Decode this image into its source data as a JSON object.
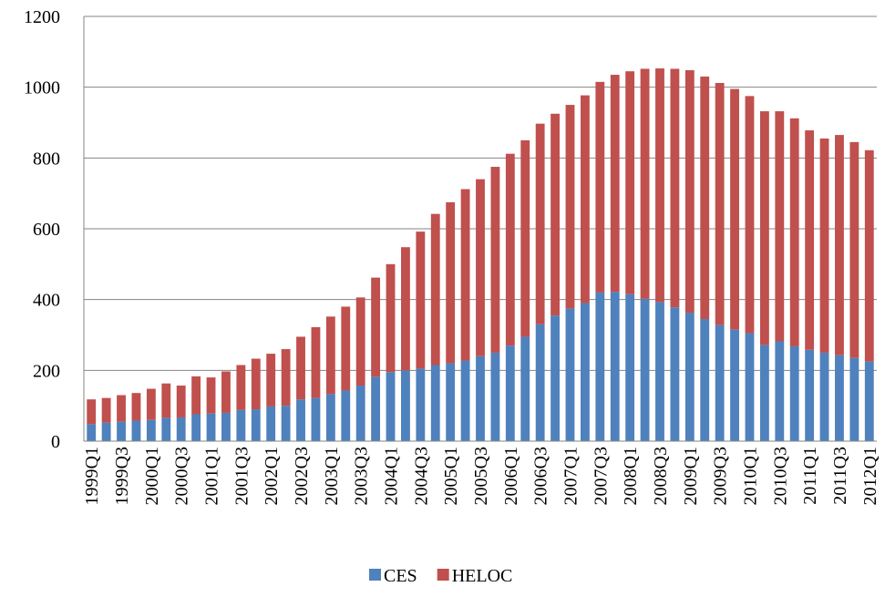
{
  "chart_data": {
    "type": "stacked_bar",
    "categories": [
      "1999Q1",
      null,
      "1999Q3",
      null,
      "2000Q1",
      null,
      "2000Q3",
      null,
      "2001Q1",
      null,
      "2001Q3",
      null,
      "2002Q1",
      null,
      "2002Q3",
      null,
      "2003Q1",
      null,
      "2003Q3",
      null,
      "2004Q1",
      null,
      "2004Q3",
      null,
      "2005Q1",
      null,
      "2005Q3",
      null,
      "2006Q1",
      null,
      "2006Q3",
      null,
      "2007Q1",
      null,
      "2007Q3",
      null,
      "2008Q1",
      null,
      "2008Q3",
      null,
      "2009Q1",
      null,
      "2009Q3",
      null,
      "2010Q1",
      null,
      "2010Q3",
      null,
      "2011Q1",
      null,
      "2011Q3",
      null,
      "2012Q1"
    ],
    "series": [
      {
        "name": "CES",
        "color": "#4f81bd",
        "values": [
          48,
          52,
          55,
          58,
          60,
          66,
          67,
          76,
          78,
          80,
          88,
          90,
          98,
          100,
          118,
          122,
          133,
          143,
          157,
          182,
          195,
          200,
          205,
          215,
          220,
          228,
          240,
          250,
          270,
          295,
          330,
          355,
          375,
          390,
          420,
          422,
          415,
          402,
          393,
          378,
          363,
          345,
          328,
          315,
          305,
          272,
          282,
          268,
          258,
          250,
          243,
          235,
          225
        ]
      },
      {
        "name": "HELOC",
        "color": "#c0504d",
        "values": [
          70,
          70,
          75,
          78,
          88,
          97,
          90,
          107,
          102,
          117,
          127,
          143,
          149,
          160,
          177,
          200,
          219,
          237,
          249,
          280,
          305,
          348,
          387,
          427,
          455,
          484,
          500,
          525,
          542,
          555,
          567,
          570,
          575,
          587,
          595,
          613,
          630,
          650,
          660,
          674,
          685,
          685,
          684,
          680,
          670,
          660,
          650,
          644,
          620,
          605,
          622,
          610,
          597
        ]
      }
    ],
    "ylim": [
      0,
      1200
    ],
    "yticks": [
      0,
      200,
      400,
      600,
      800,
      1000,
      1200
    ],
    "grid": true,
    "legend": "bottom"
  }
}
